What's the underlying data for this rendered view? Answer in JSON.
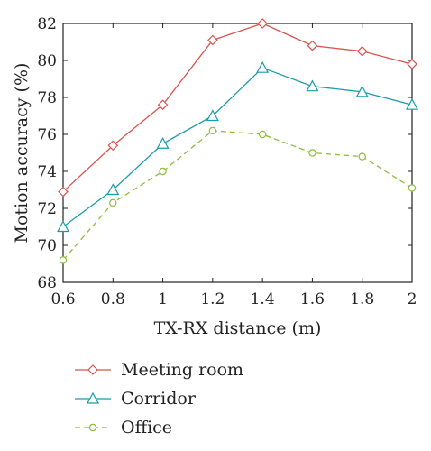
{
  "chart_data": {
    "type": "line",
    "xlabel": "TX-RX distance (m)",
    "ylabel": "Motion accuracy (%)",
    "xlim": [
      0.6,
      2
    ],
    "ylim": [
      68,
      82
    ],
    "x": [
      0.6,
      0.8,
      1.0,
      1.2,
      1.4,
      1.6,
      1.8,
      2.0
    ],
    "xticks": [
      "0.6",
      "0.8",
      "1",
      "1.2",
      "1.4",
      "1.6",
      "1.8",
      "2"
    ],
    "yticks": [
      "68",
      "70",
      "72",
      "74",
      "76",
      "78",
      "80",
      "82"
    ],
    "grid": false,
    "legend_position": "below",
    "series": [
      {
        "name": "Meeting room",
        "color": "#d9534f",
        "marker": "diamond",
        "dash": "solid",
        "values": [
          72.9,
          75.4,
          77.6,
          81.1,
          82.0,
          80.8,
          80.5,
          79.8
        ]
      },
      {
        "name": "Corridor",
        "color": "#1a9bab",
        "marker": "triangle",
        "dash": "solid",
        "values": [
          71.0,
          73.0,
          75.5,
          77.0,
          79.6,
          78.6,
          78.3,
          77.6
        ]
      },
      {
        "name": "Office",
        "color": "#8cbd3c",
        "marker": "circle",
        "dash": "dashed",
        "values": [
          69.2,
          72.3,
          74.0,
          76.2,
          76.0,
          75.0,
          74.8,
          73.1
        ]
      }
    ]
  }
}
